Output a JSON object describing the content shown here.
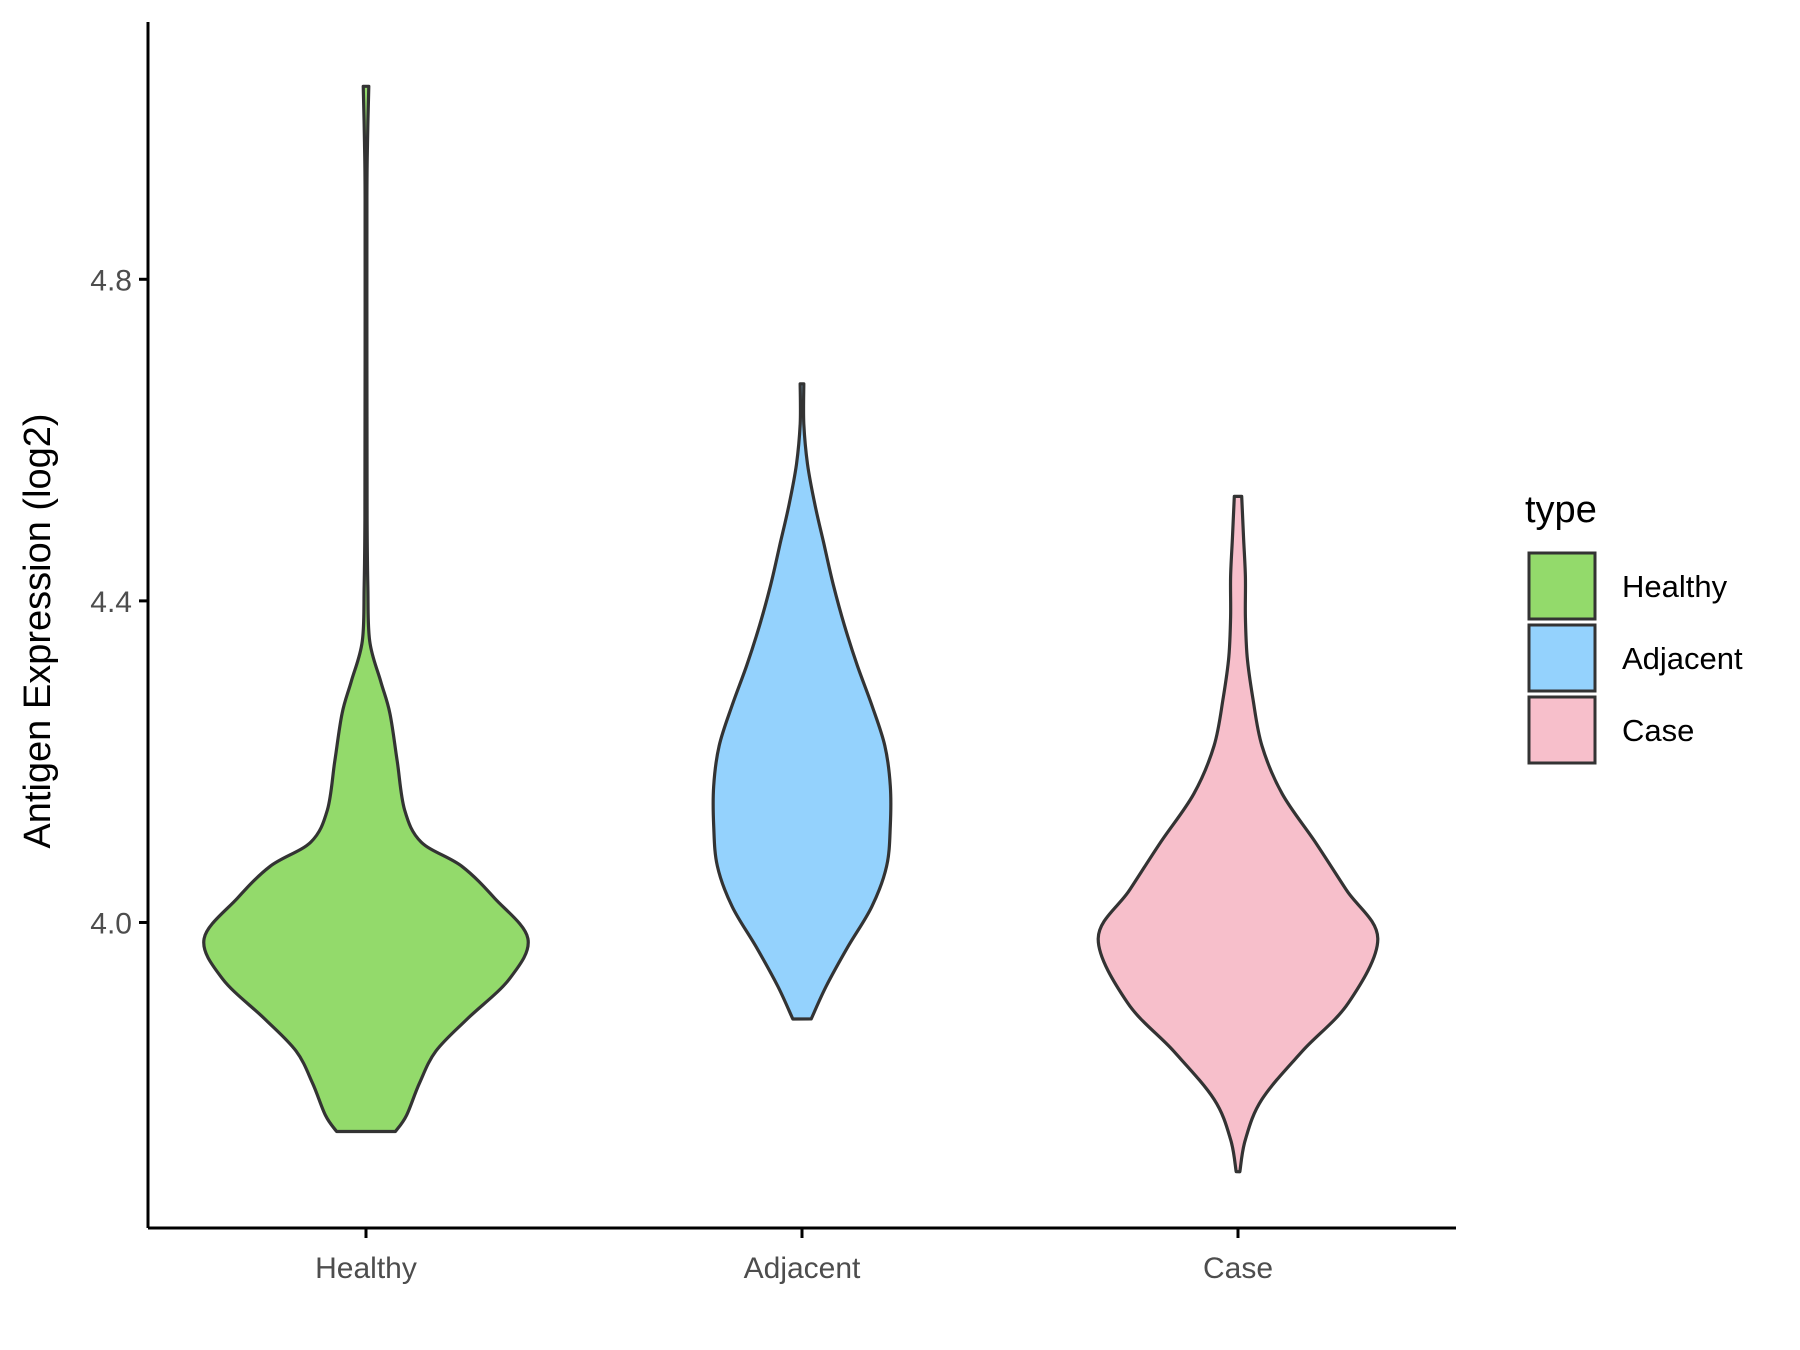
{
  "chart_data": {
    "type": "violin",
    "ylabel": "Antigen Expression (log2)",
    "categories": [
      "Healthy",
      "Adjacent",
      "Case"
    ],
    "y_ticks": [
      "4.0",
      "4.4",
      "4.8"
    ],
    "ylim": [
      3.62,
      5.12
    ],
    "grid": false,
    "legend": {
      "title": "type",
      "placement": "right",
      "entries": [
        {
          "label": "Healthy",
          "color": "#93DA6B"
        },
        {
          "label": "Adjacent",
          "color": "#94D2FD"
        },
        {
          "label": "Case",
          "color": "#F7BFCB"
        }
      ]
    },
    "series": [
      {
        "category": "Healthy",
        "color": "#93DA6B",
        "min": 3.74,
        "max": 5.04,
        "profile": [
          [
            3.74,
            0.16
          ],
          [
            3.76,
            0.22
          ],
          [
            3.8,
            0.29
          ],
          [
            3.84,
            0.38
          ],
          [
            3.88,
            0.55
          ],
          [
            3.93,
            0.78
          ],
          [
            3.98,
            0.88
          ],
          [
            4.03,
            0.7
          ],
          [
            4.07,
            0.52
          ],
          [
            4.1,
            0.3
          ],
          [
            4.14,
            0.21
          ],
          [
            4.2,
            0.17
          ],
          [
            4.26,
            0.13
          ],
          [
            4.3,
            0.08
          ],
          [
            4.35,
            0.02
          ],
          [
            4.42,
            0.01
          ],
          [
            4.5,
            0.006
          ],
          [
            4.7,
            0.005
          ],
          [
            4.9,
            0.005
          ],
          [
            4.97,
            0.008
          ],
          [
            5.04,
            0.015
          ]
        ]
      },
      {
        "category": "Adjacent",
        "color": "#94D2FD",
        "min": 3.88,
        "max": 4.67,
        "profile": [
          [
            3.88,
            0.05
          ],
          [
            3.92,
            0.13
          ],
          [
            3.97,
            0.25
          ],
          [
            4.02,
            0.38
          ],
          [
            4.07,
            0.46
          ],
          [
            4.12,
            0.48
          ],
          [
            4.17,
            0.48
          ],
          [
            4.22,
            0.45
          ],
          [
            4.27,
            0.38
          ],
          [
            4.32,
            0.3
          ],
          [
            4.37,
            0.23
          ],
          [
            4.42,
            0.17
          ],
          [
            4.47,
            0.12
          ],
          [
            4.52,
            0.07
          ],
          [
            4.57,
            0.03
          ],
          [
            4.62,
            0.01
          ],
          [
            4.67,
            0.01
          ]
        ]
      },
      {
        "category": "Case",
        "color": "#F7BFCB",
        "min": 3.69,
        "max": 4.53,
        "profile": [
          [
            3.69,
            0.01
          ],
          [
            3.73,
            0.04
          ],
          [
            3.78,
            0.13
          ],
          [
            3.84,
            0.35
          ],
          [
            3.9,
            0.6
          ],
          [
            3.98,
            0.76
          ],
          [
            4.04,
            0.59
          ],
          [
            4.1,
            0.42
          ],
          [
            4.16,
            0.24
          ],
          [
            4.22,
            0.13
          ],
          [
            4.28,
            0.08
          ],
          [
            4.33,
            0.05
          ],
          [
            4.38,
            0.04
          ],
          [
            4.43,
            0.04
          ],
          [
            4.48,
            0.03
          ],
          [
            4.53,
            0.02
          ]
        ]
      }
    ]
  }
}
